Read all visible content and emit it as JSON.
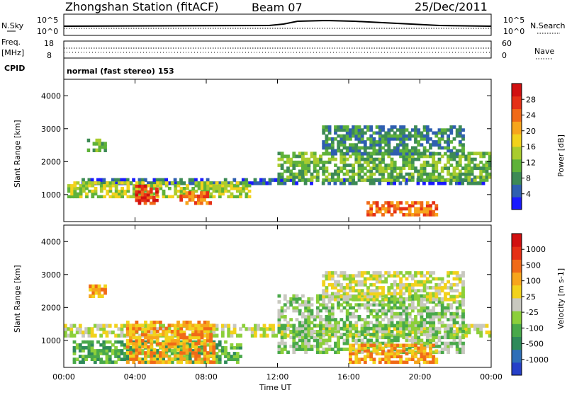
{
  "header": {
    "station": "Zhongshan Station (fitACF)",
    "beam": "Beam 07",
    "date": "25/Dec/2011"
  },
  "params": {
    "nsky_label": "N.Sky",
    "nsky_ticks": [
      "10^5",
      "10^0"
    ],
    "nsearch_label": "N.Search",
    "nsearch_ticks": [
      "10^5",
      "10^0"
    ],
    "freq_label_1": "Freq.",
    "freq_label_2": "[MHz]",
    "freq_ticks": [
      "18",
      "8"
    ],
    "nave_label": "Nave",
    "nave_ticks": [
      "60",
      "0"
    ],
    "cpid_label": "CPID",
    "cpid_text": "normal (fast stereo) 153"
  },
  "chart_data": [
    {
      "type": "heatmap",
      "name": "power-panel",
      "ylabel": "Slant Range [km]",
      "yticks": [
        "4000",
        "3000",
        "2000",
        "1000"
      ],
      "ylim": [
        180,
        4500
      ],
      "xlim_hours": [
        0,
        24
      ],
      "colorbar_label": "Power [dB]",
      "colorbar_ticks": [
        "28",
        "24",
        "20",
        "16",
        "12",
        "8",
        "4"
      ],
      "colors": [
        "#1a1aff",
        "#2f5fb0",
        "#3d8a55",
        "#5fb23a",
        "#a9cc2e",
        "#f2d21c",
        "#f7a51c",
        "#f06a18",
        "#e53016",
        "#d11010"
      ],
      "regions": [
        {
          "x": [
            1.0,
            23.8
          ],
          "y": [
            1300,
            1500
          ],
          "level": 1
        },
        {
          "x": [
            0.2,
            10.5
          ],
          "y": [
            900,
            1400
          ],
          "level": 4
        },
        {
          "x": [
            4.0,
            5.3
          ],
          "y": [
            700,
            1300
          ],
          "level": 8
        },
        {
          "x": [
            6.5,
            8.3
          ],
          "y": [
            700,
            1100
          ],
          "level": 7
        },
        {
          "x": [
            12.0,
            24.0
          ],
          "y": [
            1400,
            2300
          ],
          "level": 3
        },
        {
          "x": [
            14.5,
            22.5
          ],
          "y": [
            2200,
            3100
          ],
          "level": 2
        },
        {
          "x": [
            17.0,
            21.0
          ],
          "y": [
            350,
            800
          ],
          "level": 7
        },
        {
          "x": [
            1.3,
            2.4
          ],
          "y": [
            2300,
            2700
          ],
          "level": 3
        }
      ]
    },
    {
      "type": "heatmap",
      "name": "velocity-panel",
      "ylabel": "Slant Range [km]",
      "yticks": [
        "4000",
        "3000",
        "2000",
        "1000"
      ],
      "ylim": [
        180,
        4500
      ],
      "xlim_hours": [
        0,
        24
      ],
      "colorbar_label": "Velocity [m s-1]",
      "colorbar_ticks": [
        "1000",
        "500",
        "100",
        "25",
        "-25",
        "-100",
        "-500",
        "-1000"
      ],
      "colors": [
        "#2640c8",
        "#2f6fb8",
        "#2f8a5a",
        "#49a94a",
        "#8ccf3a",
        "#c8c8bf",
        "#f2d21c",
        "#f7a51c",
        "#f06a18",
        "#e53016",
        "#d11010"
      ],
      "regions": [
        {
          "x": [
            0.0,
            24.0
          ],
          "y": [
            1100,
            1500
          ],
          "level": 5
        },
        {
          "x": [
            0.5,
            10.0
          ],
          "y": [
            300,
            1000
          ],
          "level": 3
        },
        {
          "x": [
            3.5,
            8.5
          ],
          "y": [
            300,
            1600
          ],
          "level": 7
        },
        {
          "x": [
            12.0,
            22.5
          ],
          "y": [
            600,
            2400
          ],
          "level": 4
        },
        {
          "x": [
            14.5,
            22.5
          ],
          "y": [
            2200,
            3100
          ],
          "level": 5
        },
        {
          "x": [
            1.4,
            2.4
          ],
          "y": [
            2300,
            2700
          ],
          "level": 7
        },
        {
          "x": [
            16.0,
            21.0
          ],
          "y": [
            300,
            900
          ],
          "level": 7
        }
      ]
    }
  ],
  "xaxis": {
    "ticks": [
      "00:00",
      "04:00",
      "08:00",
      "12:00",
      "16:00",
      "20:00",
      "00:00"
    ],
    "label": "Time UT"
  }
}
